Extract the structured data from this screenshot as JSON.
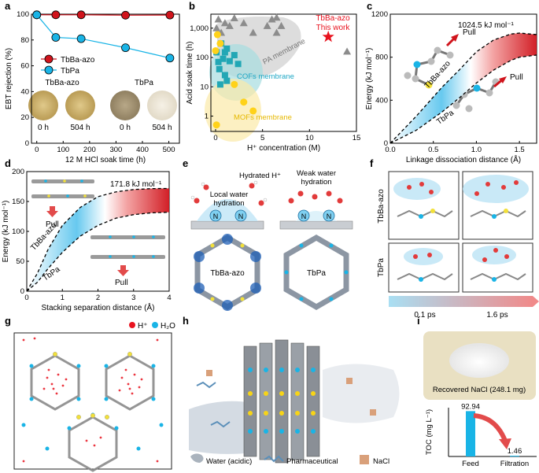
{
  "panels": {
    "a": {
      "letter": "a",
      "legend": [
        "TbBa-azo",
        "TbPa"
      ],
      "photo_labels": [
        "TbBa-azo",
        "TbPa"
      ],
      "photo_times": [
        "0 h",
        "504 h",
        "0 h",
        "504 h"
      ]
    },
    "b": {
      "letter": "b",
      "region_labels": {
        "pa": "PA membrane",
        "cof": "COFs membrane",
        "mof": "MOFs membrane"
      },
      "highlight": [
        "TbBa-azo",
        "This work"
      ]
    },
    "c": {
      "letter": "c",
      "peak_label": "1024.5 kJ mol⁻¹",
      "pull_labels": [
        "Pull",
        "Pull"
      ],
      "curve_labels": [
        "TbBa-azo",
        "TbPa"
      ]
    },
    "d": {
      "letter": "d",
      "peak_label": "171.8 kJ mol⁻¹",
      "pull_labels": [
        "Pull",
        "Pull"
      ],
      "curve_labels": [
        "TbBa-azo",
        "TbPa"
      ]
    },
    "e": {
      "letter": "e",
      "left_top": "Hydrated H⁺",
      "left_mid": [
        "Local water",
        "hydration"
      ],
      "right_top": [
        "Weak water",
        "hydration"
      ],
      "atom": "N",
      "frame_labels": [
        "TbBa-azo",
        "TbPa"
      ]
    },
    "f": {
      "letter": "f",
      "row_labels": [
        "TbBa-azo",
        "TbPa"
      ],
      "time_labels": [
        "0.1 ps",
        "1.6 ps"
      ]
    },
    "g": {
      "letter": "g",
      "legend": [
        "H⁺",
        "H₂O"
      ]
    },
    "h": {
      "letter": "h",
      "legend": [
        "Water (acidic)",
        "Pharmaceutical",
        "NaCl"
      ]
    },
    "i": {
      "letter": "i",
      "photo_caption": "Recovered NaCl (248.1 mg)"
    }
  },
  "chart_data": [
    {
      "panel": "a",
      "type": "line",
      "xlabel": "12 M HCl soak time (h)",
      "ylabel": "EBT rejection (%)",
      "xlim": [
        -20,
        540
      ],
      "ylim": [
        0,
        100
      ],
      "xticks": [
        0,
        100,
        200,
        300,
        400,
        500
      ],
      "yticks": [
        0,
        20,
        40,
        60,
        80,
        100
      ],
      "series": [
        {
          "name": "TbBa-azo",
          "color": "#d0141c",
          "x": [
            0,
            72,
            168,
            336,
            504
          ],
          "y": [
            99.5,
            99.5,
            99.5,
            99.2,
            99.3
          ]
        },
        {
          "name": "TbPa",
          "color": "#19b4e6",
          "x": [
            0,
            72,
            168,
            336,
            504
          ],
          "y": [
            99.5,
            82,
            81,
            74,
            66
          ]
        }
      ]
    },
    {
      "panel": "b",
      "type": "scatter",
      "xlabel": "H⁺ concentration (M)",
      "ylabel": "Acid soak time (h)",
      "xlim": [
        -0.5,
        15
      ],
      "ylog": true,
      "ylim": [
        0.3,
        3000
      ],
      "xticks": [
        0,
        5,
        10,
        15
      ],
      "ytick_labels": [
        "1",
        "10",
        "100",
        "1,000"
      ],
      "series": [
        {
          "name": "PA membrane",
          "color": "#8c8c8c",
          "marker": "triangle",
          "x": [
            0.1,
            0.3,
            0.6,
            1.0,
            1.5,
            2.0,
            3.0,
            4.0,
            5.5,
            6.0,
            6.5,
            6.5,
            7.0,
            14.0
          ],
          "y": [
            1000,
            2000,
            700,
            1500,
            1200,
            2200,
            1500,
            700,
            1200,
            2000,
            700,
            2300,
            1200,
            160
          ]
        },
        {
          "name": "COFs membrane",
          "color": "#22a7b5",
          "marker": "square",
          "x": [
            0.1,
            0.3,
            0.4,
            0.6,
            0.8,
            1.0,
            1.2,
            1.0,
            1.5,
            2.0,
            2.4,
            0.5,
            1.2
          ],
          "y": [
            150,
            70,
            40,
            300,
            90,
            150,
            200,
            25,
            75,
            120,
            60,
            12,
            16
          ]
        },
        {
          "name": "MOFs membrane",
          "color": "#ffd21a",
          "marker": "circle",
          "x": [
            0.0,
            0.2,
            0.5,
            2.0,
            3.0,
            4.0,
            0.1
          ],
          "y": [
            170,
            600,
            300,
            12,
            3,
            1.5,
            0.5
          ]
        },
        {
          "name": "TbBa-azo",
          "color": "#e8121e",
          "marker": "star",
          "x": [
            12
          ],
          "y": [
            504
          ]
        }
      ]
    },
    {
      "panel": "c",
      "type": "line",
      "xlabel": "Linkage dissociation distance (Å)",
      "ylabel": "Energy (kJ mol⁻¹)",
      "xlim": [
        0,
        1.7
      ],
      "ylim": [
        0,
        1200
      ],
      "xticks": [
        0.0,
        0.5,
        1.0,
        1.5
      ],
      "yticks": [
        0,
        400,
        800,
        1200
      ],
      "series": [
        {
          "name": "TbBa-azo",
          "x": [
            0,
            0.3,
            0.6,
            0.8,
            1.0,
            1.2,
            1.4,
            1.5,
            1.7
          ],
          "y": [
            0,
            250,
            520,
            680,
            850,
            960,
            1015,
            1024.5,
            1010
          ]
        },
        {
          "name": "TbPa",
          "x": [
            0,
            0.3,
            0.6,
            0.8,
            1.0,
            1.2,
            1.4,
            1.5,
            1.7
          ],
          "y": [
            0,
            120,
            290,
            420,
            560,
            680,
            770,
            800,
            820
          ]
        }
      ]
    },
    {
      "panel": "d",
      "type": "line",
      "xlabel": "Stacking separation distance (Å)",
      "ylabel": "Energy (kJ mol⁻¹)",
      "xlim": [
        0,
        4
      ],
      "ylim": [
        0,
        200
      ],
      "xticks": [
        0,
        1,
        2,
        3,
        4
      ],
      "yticks": [
        0,
        50,
        100,
        150,
        200
      ],
      "series": [
        {
          "name": "TbBa-azo",
          "x": [
            0,
            0.3,
            0.6,
            1.0,
            1.5,
            2.0,
            2.5,
            3.0,
            3.5,
            4.0
          ],
          "y": [
            0,
            30,
            70,
            110,
            140,
            158,
            166,
            170,
            171.5,
            171.8
          ]
        },
        {
          "name": "TbPa",
          "x": [
            0,
            0.3,
            0.6,
            1.0,
            1.5,
            2.0,
            2.5,
            3.0,
            3.5,
            4.0
          ],
          "y": [
            0,
            15,
            38,
            65,
            92,
            110,
            122,
            128,
            131,
            132
          ]
        }
      ]
    },
    {
      "panel": "i",
      "type": "bar",
      "ylabel": "TOC (mg L⁻¹)",
      "ylim": [
        0,
        100
      ],
      "categories": [
        "Feed",
        "Filtration"
      ],
      "values": [
        92.94,
        1.46
      ],
      "data_labels": [
        "92.94",
        "1.46"
      ],
      "color": "#19b4e6"
    }
  ]
}
